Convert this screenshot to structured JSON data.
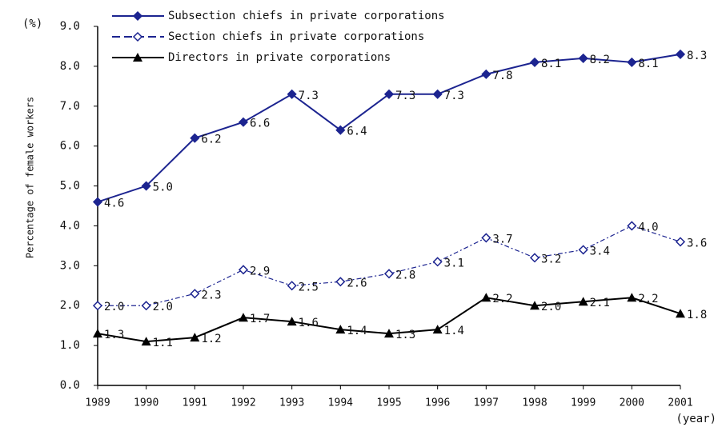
{
  "chart_data": {
    "type": "line",
    "y_unit": "(%)",
    "x_unit": "(year)",
    "ylabel": "Percentage of female workers",
    "categories": [
      "1989",
      "1990",
      "1991",
      "1992",
      "1993",
      "1994",
      "1995",
      "1996",
      "1997",
      "1998",
      "1999",
      "2000",
      "2001"
    ],
    "series": [
      {
        "name": "Subsection chiefs in private corporations",
        "color": "#1c2490",
        "marker": "filled-diamond",
        "line_style": "solid",
        "values": [
          4.6,
          5.0,
          6.2,
          6.6,
          7.3,
          6.4,
          7.3,
          7.3,
          7.8,
          8.1,
          8.2,
          8.1,
          8.3
        ],
        "value_labels": [
          "4.6",
          "5.0",
          "6.2",
          "6.6",
          "7.3",
          "6.4",
          "7.3",
          "7.3",
          "7.8",
          "8.1",
          "8.2",
          "8.1",
          "8.3"
        ]
      },
      {
        "name": "Section chiefs in private corporations",
        "color": "#1c2490",
        "marker": "open-diamond",
        "line_style": "dashed",
        "values": [
          2.0,
          2.0,
          2.3,
          2.9,
          2.5,
          2.6,
          2.8,
          3.1,
          3.7,
          3.2,
          3.4,
          4.0,
          3.6
        ],
        "value_labels": [
          "2.0",
          "2.0",
          "2.3",
          "2.9",
          "2.5",
          "2.6",
          "2.8",
          "3.1",
          "3.7",
          "3.2",
          "3.4",
          "4.0",
          "3.6"
        ]
      },
      {
        "name": "Directors in private corporations",
        "color": "#000000",
        "marker": "triangle",
        "line_style": "solid",
        "values": [
          1.3,
          1.1,
          1.2,
          1.7,
          1.6,
          1.4,
          1.3,
          1.4,
          2.2,
          2.0,
          2.1,
          2.2,
          1.8
        ],
        "value_labels": [
          "1.3",
          "1.1",
          "1.2",
          "1.7",
          "1.6",
          "1.4",
          "1.3",
          "1.4",
          "2.2",
          "2.0",
          "2.1",
          "2.2",
          "1.8"
        ]
      }
    ],
    "ylim": [
      0,
      9
    ],
    "yticks": [
      {
        "value": 0,
        "label": "0.0"
      },
      {
        "value": 1,
        "label": "1.0"
      },
      {
        "value": 2,
        "label": "2.0"
      },
      {
        "value": 3,
        "label": "3.0"
      },
      {
        "value": 4,
        "label": "4.0"
      },
      {
        "value": 5,
        "label": "5.0"
      },
      {
        "value": 6,
        "label": "6.0"
      },
      {
        "value": 7,
        "label": "7.0"
      },
      {
        "value": 8,
        "label": "8.0"
      },
      {
        "value": 9,
        "label": "9.0"
      }
    ],
    "grid": false,
    "legend": "top-left"
  }
}
